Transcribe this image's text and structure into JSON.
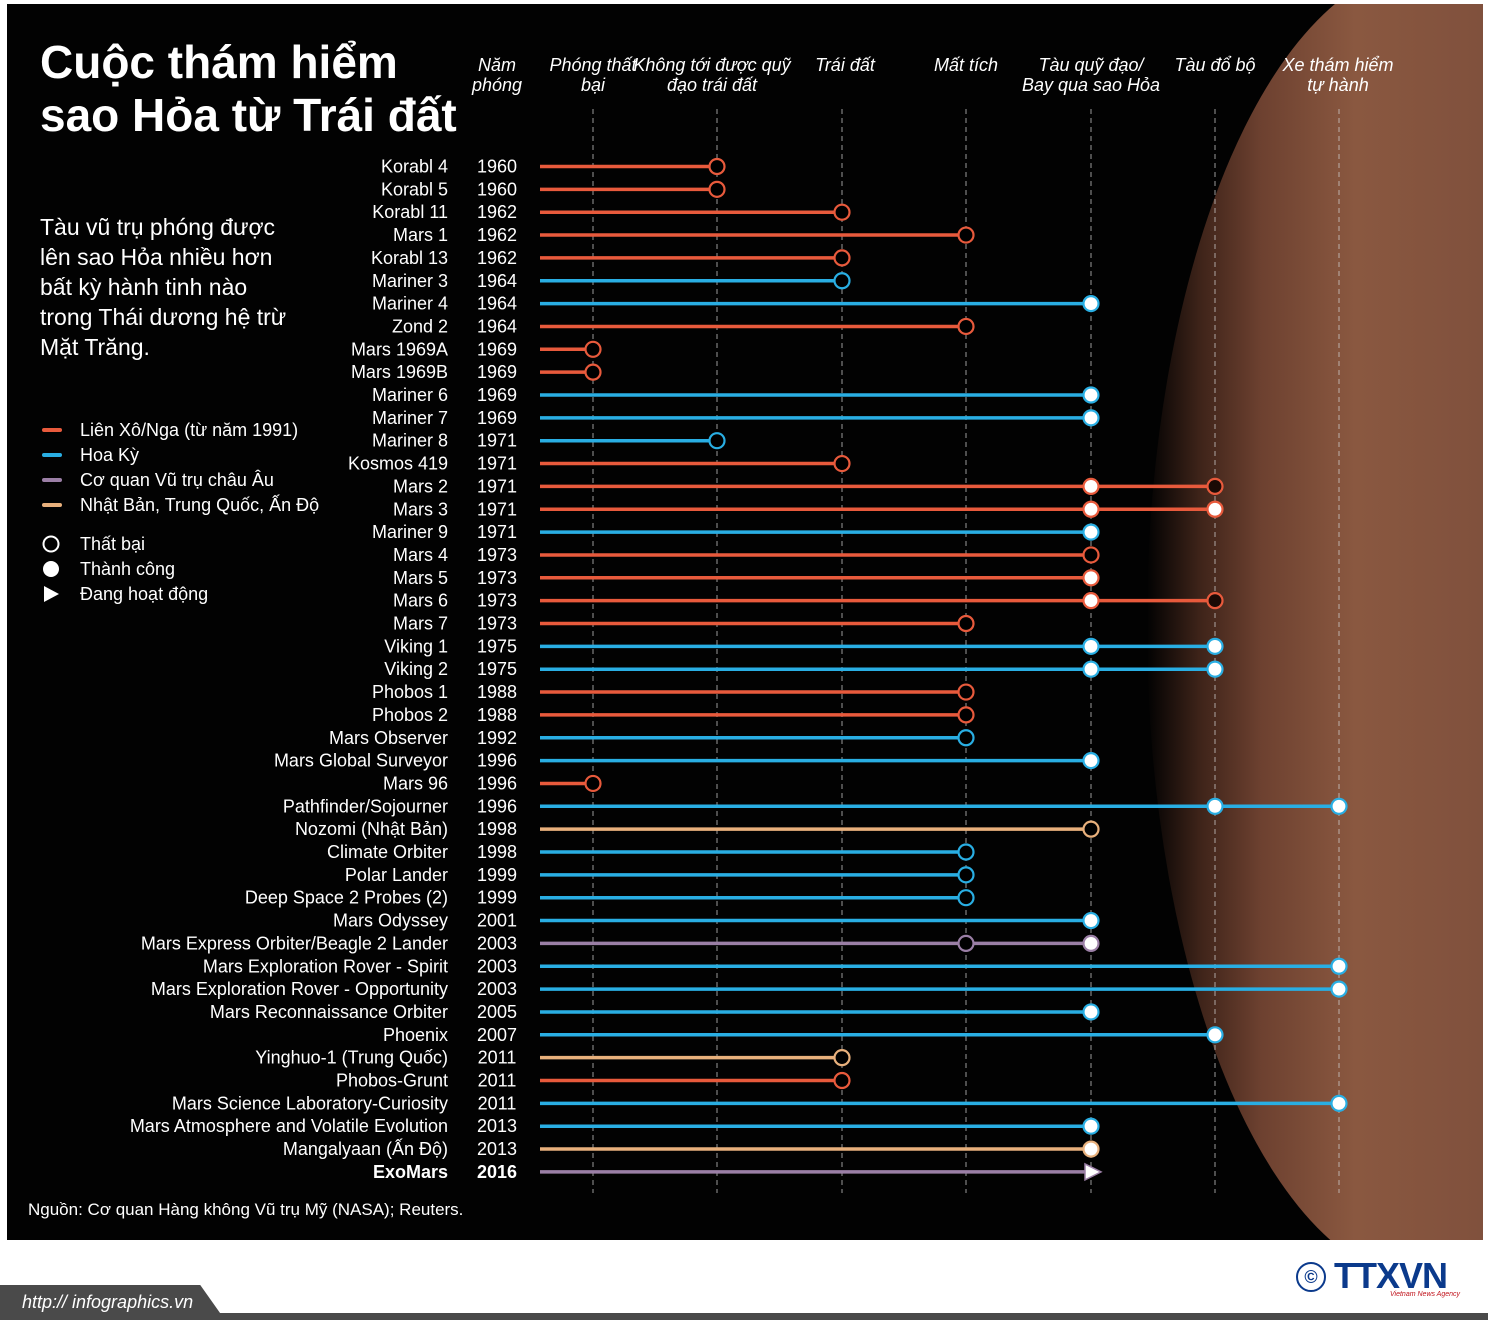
{
  "title": "Cuộc thám hiểm sao Hỏa từ Trái đất",
  "subtitle": "Tàu vũ trụ phóng được lên sao Hỏa nhiều hơn bất kỳ hành tinh nào trong Thái dương hệ trừ Mặt Trăng.",
  "legend": {
    "agencies": [
      {
        "key": "ussr",
        "label": "Liên Xô/Nga (từ năm 1991)",
        "color": "#e85a3c"
      },
      {
        "key": "usa",
        "label": "Hoa Kỳ",
        "color": "#29aee3"
      },
      {
        "key": "esa",
        "label": "Cơ quan Vũ trụ châu Âu",
        "color": "#9b7fa6"
      },
      {
        "key": "asia",
        "label": "Nhật Bản, Trung Quốc, Ấn Độ",
        "color": "#e8b07c"
      }
    ],
    "symbols": [
      {
        "key": "fail",
        "label": "Thất bại"
      },
      {
        "key": "success",
        "label": "Thành công"
      },
      {
        "key": "active",
        "label": "Đang hoạt động"
      }
    ]
  },
  "source": "Nguồn: Cơ quan Hàng không Vũ trụ Mỹ (NASA); Reuters.",
  "footer": {
    "url": "http:// infographics.vn",
    "copyright_symbol": "©",
    "agency": "TTXVN",
    "agency_sub": "Vietnam News Agency"
  },
  "chart_data": {
    "type": "timeline-stage-chart",
    "year_header": "Năm phóng",
    "stages": [
      {
        "label": "Phóng thất bại"
      },
      {
        "label": "Không tới được quỹ đạo trái đất"
      },
      {
        "label": "Trái đất"
      },
      {
        "label": "Mất tích"
      },
      {
        "label": "Tàu quỹ đạo/ Bay qua sao Hỏa"
      },
      {
        "label": "Tàu đổ bộ"
      },
      {
        "label": "Xe thám hiểm tự hành"
      }
    ],
    "missions": [
      {
        "name": "Korabl 4",
        "year": "1960",
        "agency": "ussr",
        "markers": [
          {
            "stage": 2,
            "status": "fail"
          }
        ]
      },
      {
        "name": "Korabl 5",
        "year": "1960",
        "agency": "ussr",
        "markers": [
          {
            "stage": 2,
            "status": "fail"
          }
        ]
      },
      {
        "name": "Korabl 11",
        "year": "1962",
        "agency": "ussr",
        "markers": [
          {
            "stage": 3,
            "status": "fail"
          }
        ]
      },
      {
        "name": "Mars 1",
        "year": "1962",
        "agency": "ussr",
        "markers": [
          {
            "stage": 4,
            "status": "fail"
          }
        ]
      },
      {
        "name": "Korabl 13",
        "year": "1962",
        "agency": "ussr",
        "markers": [
          {
            "stage": 3,
            "status": "fail"
          }
        ]
      },
      {
        "name": "Mariner 3",
        "year": "1964",
        "agency": "usa",
        "markers": [
          {
            "stage": 3,
            "status": "fail"
          }
        ]
      },
      {
        "name": "Mariner 4",
        "year": "1964",
        "agency": "usa",
        "markers": [
          {
            "stage": 5,
            "status": "success"
          }
        ]
      },
      {
        "name": "Zond 2",
        "year": "1964",
        "agency": "ussr",
        "markers": [
          {
            "stage": 4,
            "status": "fail"
          }
        ]
      },
      {
        "name": "Mars 1969A",
        "year": "1969",
        "agency": "ussr",
        "markers": [
          {
            "stage": 1,
            "status": "fail"
          }
        ]
      },
      {
        "name": "Mars 1969B",
        "year": "1969",
        "agency": "ussr",
        "markers": [
          {
            "stage": 1,
            "status": "fail"
          }
        ]
      },
      {
        "name": "Mariner 6",
        "year": "1969",
        "agency": "usa",
        "markers": [
          {
            "stage": 5,
            "status": "success"
          }
        ]
      },
      {
        "name": "Mariner 7",
        "year": "1969",
        "agency": "usa",
        "markers": [
          {
            "stage": 5,
            "status": "success"
          }
        ]
      },
      {
        "name": "Mariner 8",
        "year": "1971",
        "agency": "usa",
        "markers": [
          {
            "stage": 2,
            "status": "fail"
          }
        ]
      },
      {
        "name": "Kosmos 419",
        "year": "1971",
        "agency": "ussr",
        "markers": [
          {
            "stage": 3,
            "status": "fail"
          }
        ]
      },
      {
        "name": "Mars 2",
        "year": "1971",
        "agency": "ussr",
        "markers": [
          {
            "stage": 5,
            "status": "success"
          },
          {
            "stage": 6,
            "status": "crash"
          }
        ]
      },
      {
        "name": "Mars 3",
        "year": "1971",
        "agency": "ussr",
        "markers": [
          {
            "stage": 5,
            "status": "success"
          },
          {
            "stage": 6,
            "status": "success"
          }
        ]
      },
      {
        "name": "Mariner 9",
        "year": "1971",
        "agency": "usa",
        "markers": [
          {
            "stage": 5,
            "status": "success"
          }
        ]
      },
      {
        "name": "Mars 4",
        "year": "1973",
        "agency": "ussr",
        "markers": [
          {
            "stage": 5,
            "status": "fail"
          }
        ]
      },
      {
        "name": "Mars 5",
        "year": "1973",
        "agency": "ussr",
        "markers": [
          {
            "stage": 5,
            "status": "success"
          }
        ]
      },
      {
        "name": "Mars 6",
        "year": "1973",
        "agency": "ussr",
        "markers": [
          {
            "stage": 5,
            "status": "success"
          },
          {
            "stage": 6,
            "status": "crash"
          }
        ]
      },
      {
        "name": "Mars 7",
        "year": "1973",
        "agency": "ussr",
        "markers": [
          {
            "stage": 4,
            "status": "fail"
          }
        ]
      },
      {
        "name": "Viking 1",
        "year": "1975",
        "agency": "usa",
        "markers": [
          {
            "stage": 5,
            "status": "success"
          },
          {
            "stage": 6,
            "status": "success"
          }
        ]
      },
      {
        "name": "Viking 2",
        "year": "1975",
        "agency": "usa",
        "markers": [
          {
            "stage": 5,
            "status": "success"
          },
          {
            "stage": 6,
            "status": "success"
          }
        ]
      },
      {
        "name": "Phobos 1",
        "year": "1988",
        "agency": "ussr",
        "markers": [
          {
            "stage": 4,
            "status": "fail"
          }
        ]
      },
      {
        "name": "Phobos 2",
        "year": "1988",
        "agency": "ussr",
        "markers": [
          {
            "stage": 4,
            "status": "fail"
          }
        ]
      },
      {
        "name": "Mars Observer",
        "year": "1992",
        "agency": "usa",
        "markers": [
          {
            "stage": 4,
            "status": "fail"
          }
        ]
      },
      {
        "name": "Mars Global Surveyor",
        "year": "1996",
        "agency": "usa",
        "markers": [
          {
            "stage": 5,
            "status": "success"
          }
        ]
      },
      {
        "name": "Mars 96",
        "year": "1996",
        "agency": "ussr",
        "markers": [
          {
            "stage": 1,
            "status": "fail"
          }
        ]
      },
      {
        "name": "Pathfinder/Sojourner",
        "year": "1996",
        "agency": "usa",
        "markers": [
          {
            "stage": 6,
            "status": "success"
          },
          {
            "stage": 7,
            "status": "success"
          }
        ]
      },
      {
        "name": "Nozomi (Nhật Bản)",
        "year": "1998",
        "agency": "asia",
        "markers": [
          {
            "stage": 5,
            "status": "fail"
          }
        ]
      },
      {
        "name": "Climate Orbiter",
        "year": "1998",
        "agency": "usa",
        "markers": [
          {
            "stage": 4,
            "status": "fail"
          }
        ]
      },
      {
        "name": "Polar Lander",
        "year": "1999",
        "agency": "usa",
        "markers": [
          {
            "stage": 4,
            "status": "fail"
          }
        ]
      },
      {
        "name": "Deep Space 2 Probes (2)",
        "year": "1999",
        "agency": "usa",
        "markers": [
          {
            "stage": 4,
            "status": "fail"
          }
        ]
      },
      {
        "name": "Mars Odyssey",
        "year": "2001",
        "agency": "usa",
        "markers": [
          {
            "stage": 5,
            "status": "success"
          }
        ]
      },
      {
        "name": "Mars Express Orbiter/Beagle 2 Lander",
        "year": "2003",
        "agency": "esa",
        "markers": [
          {
            "stage": 4,
            "status": "fail"
          },
          {
            "stage": 5,
            "status": "success"
          }
        ]
      },
      {
        "name": "Mars Exploration Rover - Spirit",
        "year": "2003",
        "agency": "usa",
        "markers": [
          {
            "stage": 7,
            "status": "success"
          }
        ]
      },
      {
        "name": "Mars Exploration Rover - Opportunity",
        "year": "2003",
        "agency": "usa",
        "markers": [
          {
            "stage": 7,
            "status": "success"
          }
        ]
      },
      {
        "name": "Mars Reconnaissance Orbiter",
        "year": "2005",
        "agency": "usa",
        "markers": [
          {
            "stage": 5,
            "status": "success"
          }
        ]
      },
      {
        "name": "Phoenix",
        "year": "2007",
        "agency": "usa",
        "markers": [
          {
            "stage": 6,
            "status": "success"
          }
        ]
      },
      {
        "name": "Yinghuo-1 (Trung Quốc)",
        "year": "2011",
        "agency": "asia",
        "markers": [
          {
            "stage": 3,
            "status": "fail"
          }
        ]
      },
      {
        "name": "Phobos-Grunt",
        "year": "2011",
        "agency": "ussr",
        "markers": [
          {
            "stage": 3,
            "status": "fail"
          }
        ]
      },
      {
        "name": "Mars Science Laboratory-Curiosity",
        "year": "2011",
        "agency": "usa",
        "markers": [
          {
            "stage": 7,
            "status": "success"
          }
        ]
      },
      {
        "name": "Mars Atmosphere and Volatile Evolution",
        "year": "2013",
        "agency": "usa",
        "markers": [
          {
            "stage": 5,
            "status": "success"
          }
        ]
      },
      {
        "name": "Mangalyaan (Ấn Độ)",
        "year": "2013",
        "agency": "asia",
        "markers": [
          {
            "stage": 5,
            "status": "success"
          }
        ]
      },
      {
        "name": "ExoMars",
        "year": "2016",
        "agency": "esa",
        "bold": true,
        "markers": [
          {
            "stage": 5,
            "status": "active"
          }
        ]
      }
    ]
  }
}
